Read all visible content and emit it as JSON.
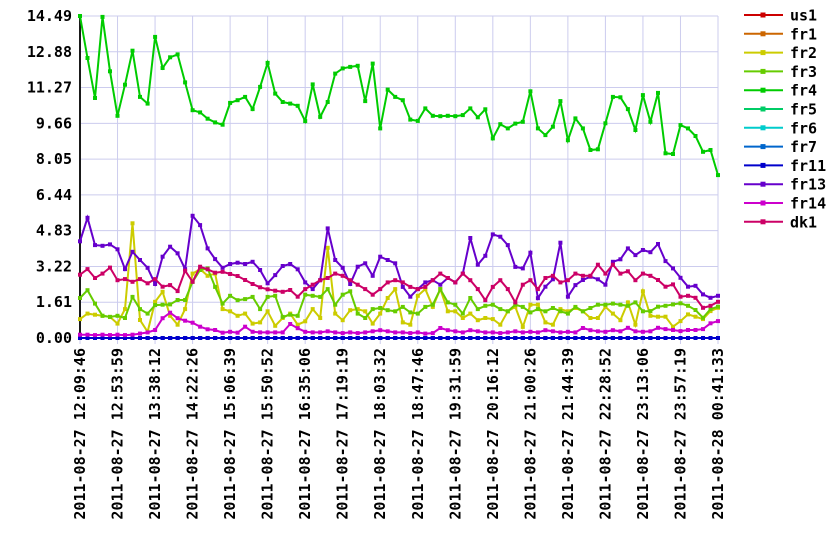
{
  "page_background": "#ffffff",
  "chart_data": {
    "type": "line",
    "title": "",
    "grid": true,
    "legend_position": "right-top",
    "marker": "square",
    "colors": {
      "grid": "#ccccee",
      "axis": "#1a1a1a",
      "tick_label": "#000000"
    },
    "y_axis": {
      "min": 0.0,
      "max": 14.49,
      "tick_step": 1.61,
      "tick_labels": [
        "0.00",
        "1.61",
        "3.22",
        "4.83",
        "6.44",
        "8.05",
        "9.66",
        "11.27",
        "12.88",
        "14.49"
      ]
    },
    "x_axis": {
      "tick_labels": [
        "2011-08-27 12:09:46",
        "2011-08-27 12:53:59",
        "2011-08-27 13:38:12",
        "2011-08-27 14:22:26",
        "2011-08-27 15:06:39",
        "2011-08-27 15:50:52",
        "2011-08-27 16:35:06",
        "2011-08-27 17:19:19",
        "2011-08-27 18:03:32",
        "2011-08-27 18:47:46",
        "2011-08-27 19:31:59",
        "2011-08-27 20:16:12",
        "2011-08-27 21:00:26",
        "2011-08-27 21:44:39",
        "2011-08-27 22:28:52",
        "2011-08-27 23:13:06",
        "2011-08-27 23:57:19",
        "2011-08-28 00:41:33"
      ],
      "points_per_tick_interval": 5
    },
    "points_per_series": 86,
    "series": [
      {
        "name": "us1",
        "color": "#cc0000",
        "values_constant": 0.0
      },
      {
        "name": "fr1",
        "color": "#cc6600",
        "values_constant": 0.0
      },
      {
        "name": "fr2",
        "color": "#cccc00",
        "values": [
          0.85,
          1.1,
          1.05,
          1.0,
          0.95,
          0.65,
          1.3,
          5.16,
          0.81,
          0.28,
          1.63,
          2.08,
          1.0,
          0.6,
          1.3,
          2.9,
          3.1,
          2.8,
          2.9,
          1.3,
          1.2,
          1.0,
          1.1,
          0.65,
          0.7,
          1.2,
          0.55,
          0.9,
          1.1,
          0.6,
          0.75,
          1.3,
          0.9,
          4.06,
          1.1,
          0.8,
          1.25,
          1.3,
          1.2,
          0.65,
          1.1,
          1.8,
          2.2,
          0.7,
          0.6,
          1.9,
          2.2,
          1.4,
          2.2,
          1.2,
          1.2,
          0.9,
          1.1,
          0.8,
          0.9,
          0.85,
          0.6,
          1.2,
          1.4,
          0.5,
          1.5,
          1.5,
          0.7,
          0.6,
          1.3,
          1.2,
          1.35,
          1.2,
          0.9,
          0.9,
          1.4,
          1.1,
          0.8,
          1.6,
          0.6,
          2.1,
          1.0,
          0.96,
          0.96,
          0.51,
          0.76,
          1.06,
          0.96,
          0.85,
          1.21,
          1.36
        ]
      },
      {
        "name": "fr3",
        "color": "#66cc00",
        "values": [
          1.8,
          2.15,
          1.55,
          1.0,
          0.95,
          1.0,
          0.9,
          1.85,
          1.3,
          1.1,
          1.48,
          1.5,
          1.51,
          1.71,
          1.71,
          2.53,
          3.06,
          3.13,
          2.3,
          1.55,
          1.9,
          1.7,
          1.75,
          1.85,
          1.3,
          1.85,
          1.9,
          0.95,
          1.05,
          1.0,
          1.95,
          1.9,
          1.85,
          2.2,
          1.5,
          1.95,
          2.1,
          1.1,
          0.9,
          1.3,
          1.35,
          1.25,
          1.2,
          1.4,
          1.15,
          1.1,
          1.4,
          1.5,
          2.2,
          1.6,
          1.5,
          1.1,
          1.8,
          1.3,
          1.45,
          1.5,
          1.3,
          1.2,
          1.5,
          1.4,
          1.15,
          1.3,
          1.2,
          1.35,
          1.2,
          1.1,
          1.4,
          1.2,
          1.35,
          1.5,
          1.5,
          1.55,
          1.5,
          1.45,
          1.6,
          1.2,
          1.21,
          1.41,
          1.45,
          1.51,
          1.56,
          1.45,
          1.26,
          0.91,
          1.3,
          1.41
        ]
      },
      {
        "name": "fr4",
        "color": "#00cc00",
        "values": [
          14.49,
          12.6,
          10.8,
          14.45,
          12.0,
          10.0,
          11.4,
          12.93,
          10.85,
          10.55,
          13.55,
          12.15,
          12.63,
          12.76,
          11.5,
          10.25,
          10.15,
          9.87,
          9.7,
          9.6,
          10.58,
          10.7,
          10.85,
          10.3,
          11.3,
          12.38,
          11.0,
          10.62,
          10.55,
          10.45,
          9.76,
          11.41,
          9.95,
          10.62,
          11.9,
          12.13,
          12.2,
          12.25,
          10.66,
          12.35,
          9.43,
          11.18,
          10.85,
          10.7,
          9.83,
          9.77,
          10.33,
          10.0,
          9.98,
          10.0,
          9.98,
          10.03,
          10.33,
          9.93,
          10.29,
          8.98,
          9.62,
          9.43,
          9.65,
          9.73,
          11.1,
          9.43,
          9.13,
          9.51,
          10.66,
          8.9,
          9.88,
          9.43,
          8.46,
          8.49,
          9.66,
          10.85,
          10.83,
          10.3,
          9.36,
          10.93,
          9.73,
          11.03,
          8.31,
          8.28,
          9.58,
          9.43,
          9.09,
          8.38,
          8.46,
          7.33
        ]
      },
      {
        "name": "fr5",
        "color": "#00cc66",
        "values_constant": 0.0
      },
      {
        "name": "fr6",
        "color": "#00cccc",
        "values_constant": 0.0
      },
      {
        "name": "fr7",
        "color": "#0066cc",
        "values_constant": 0.0
      },
      {
        "name": "fr11",
        "color": "#0000cc",
        "values_constant": 0.0
      },
      {
        "name": "fr13",
        "color": "#6600cc",
        "values": [
          4.35,
          5.41,
          4.18,
          4.15,
          4.21,
          3.99,
          3.1,
          3.88,
          3.51,
          3.16,
          2.43,
          3.66,
          4.11,
          3.81,
          3.1,
          5.5,
          5.08,
          4.03,
          3.55,
          3.16,
          3.33,
          3.39,
          3.33,
          3.43,
          3.06,
          2.46,
          2.83,
          3.24,
          3.33,
          3.09,
          2.5,
          2.2,
          2.6,
          4.93,
          3.51,
          3.16,
          2.43,
          3.21,
          3.36,
          2.8,
          3.66,
          3.51,
          3.36,
          2.3,
          1.86,
          2.2,
          2.5,
          2.6,
          2.4,
          2.7,
          2.5,
          2.9,
          4.5,
          3.3,
          3.7,
          4.66,
          4.56,
          4.18,
          3.2,
          3.13,
          3.84,
          1.79,
          2.31,
          2.64,
          4.29,
          1.86,
          2.38,
          2.61,
          2.76,
          2.64,
          2.4,
          3.43,
          3.54,
          4.03,
          3.73,
          3.96,
          3.86,
          4.23,
          3.46,
          3.13,
          2.71,
          2.31,
          2.35,
          1.96,
          1.81,
          1.9
        ]
      },
      {
        "name": "fr14",
        "color": "#cc00cc",
        "values": [
          0.15,
          0.15,
          0.13,
          0.15,
          0.13,
          0.15,
          0.13,
          0.15,
          0.2,
          0.25,
          0.36,
          0.89,
          1.14,
          0.89,
          0.78,
          0.69,
          0.51,
          0.39,
          0.36,
          0.24,
          0.28,
          0.24,
          0.51,
          0.28,
          0.25,
          0.25,
          0.25,
          0.25,
          0.63,
          0.44,
          0.28,
          0.25,
          0.25,
          0.3,
          0.25,
          0.22,
          0.25,
          0.22,
          0.25,
          0.3,
          0.35,
          0.3,
          0.25,
          0.25,
          0.22,
          0.25,
          0.2,
          0.22,
          0.45,
          0.35,
          0.3,
          0.25,
          0.35,
          0.3,
          0.25,
          0.25,
          0.22,
          0.25,
          0.3,
          0.25,
          0.28,
          0.25,
          0.35,
          0.3,
          0.25,
          0.28,
          0.25,
          0.45,
          0.35,
          0.3,
          0.28,
          0.35,
          0.3,
          0.46,
          0.3,
          0.28,
          0.3,
          0.46,
          0.4,
          0.36,
          0.31,
          0.36,
          0.36,
          0.4,
          0.66,
          0.76
        ]
      },
      {
        "name": "dk1",
        "color": "#cc0066",
        "values": [
          2.85,
          3.1,
          2.7,
          2.9,
          3.17,
          2.6,
          2.65,
          2.53,
          2.65,
          2.46,
          2.65,
          2.31,
          2.38,
          2.11,
          3.03,
          2.53,
          3.21,
          3.09,
          2.94,
          2.98,
          2.88,
          2.79,
          2.61,
          2.43,
          2.28,
          2.19,
          2.13,
          2.08,
          2.16,
          1.86,
          2.2,
          2.4,
          2.6,
          2.7,
          2.9,
          2.8,
          2.6,
          2.4,
          2.2,
          1.95,
          2.2,
          2.5,
          2.6,
          2.5,
          2.3,
          2.2,
          2.3,
          2.6,
          2.9,
          2.7,
          2.5,
          2.9,
          2.6,
          2.2,
          1.7,
          2.3,
          2.6,
          2.2,
          1.6,
          2.4,
          2.6,
          2.2,
          2.7,
          2.8,
          2.5,
          2.6,
          2.9,
          2.8,
          2.8,
          3.3,
          2.9,
          3.3,
          2.9,
          3.0,
          2.6,
          2.9,
          2.8,
          2.61,
          2.31,
          2.41,
          1.86,
          1.9,
          1.81,
          1.36,
          1.45,
          1.63
        ]
      }
    ],
    "legend_labels": [
      "us1",
      "fr1",
      "fr2",
      "fr3",
      "fr4",
      "fr5",
      "fr6",
      "fr7",
      "fr11",
      "fr13",
      "fr14",
      "dk1"
    ]
  }
}
